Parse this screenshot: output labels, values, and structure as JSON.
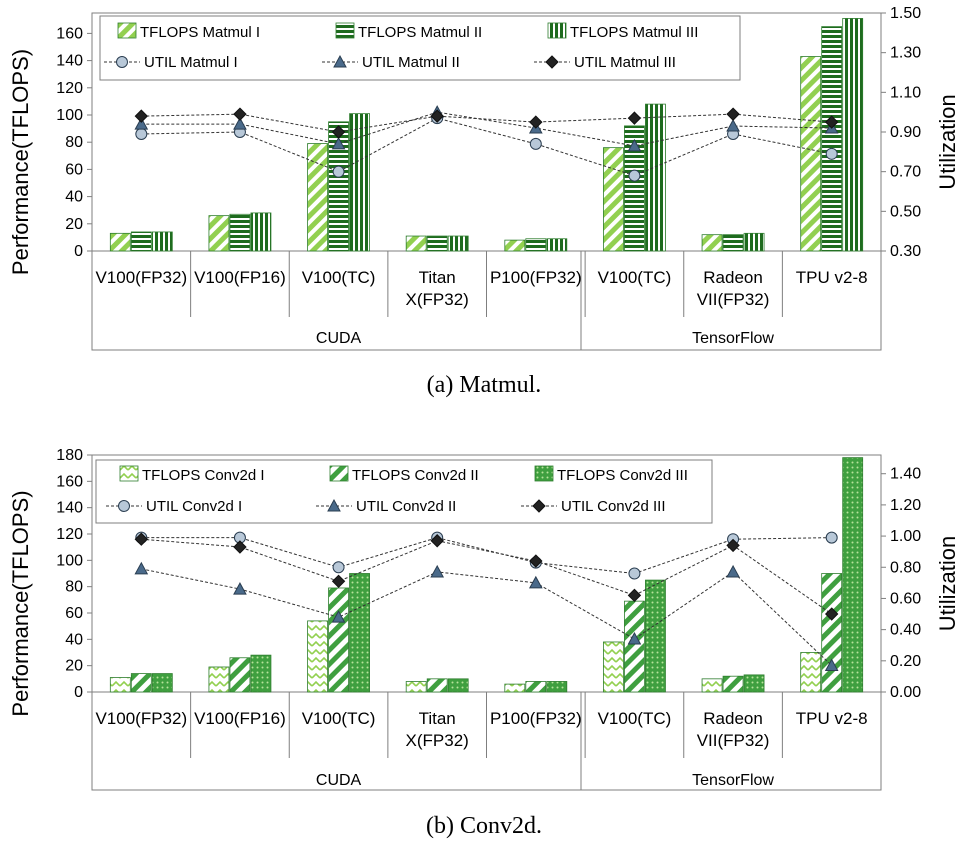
{
  "colors": {
    "light_green": "#92d050",
    "dark_green": "#1e6b1e",
    "mid_green": "#3f9f3f",
    "marker_fill": "#b8c8d8",
    "marker_edge": "#2a3d50",
    "triangle": "#4a6a8a",
    "diamond": "#222222"
  },
  "chart_data": [
    {
      "type": "bar",
      "caption": "(a)  Matmul.",
      "ylabel": "Performance(TFLOPS)",
      "y2label": "Utilization",
      "ylim": [
        0,
        175
      ],
      "y2lim": [
        0.3,
        1.5
      ],
      "yticks": [
        "0",
        "20",
        "40",
        "60",
        "80",
        "100",
        "120",
        "140",
        "160"
      ],
      "y2ticks": [
        "0.30",
        "0.50",
        "0.70",
        "0.90",
        "1.10",
        "1.30",
        "1.50"
      ],
      "categories": [
        {
          "lines": [
            "V100(FP32)"
          ]
        },
        {
          "lines": [
            "V100(FP16)"
          ]
        },
        {
          "lines": [
            "V100(TC)"
          ]
        },
        {
          "lines": [
            "Titan",
            "X(FP32)"
          ]
        },
        {
          "lines": [
            "P100(FP32)"
          ]
        },
        {
          "lines": [
            "V100(TC)"
          ]
        },
        {
          "lines": [
            "Radeon",
            "VII(FP32)"
          ]
        },
        {
          "lines": [
            "TPU v2-8"
          ]
        }
      ],
      "groups": [
        {
          "name": "CUDA",
          "span": [
            0,
            4
          ]
        },
        {
          "name": "TensorFlow",
          "span": [
            5,
            7
          ]
        }
      ],
      "bar_series": [
        {
          "name": "TFLOPS Matmul I",
          "pattern": "m1",
          "values": [
            13,
            26,
            79,
            11,
            8,
            76,
            12,
            143
          ]
        },
        {
          "name": "TFLOPS Matmul II",
          "pattern": "m2",
          "values": [
            14,
            27,
            95,
            11,
            9,
            92,
            12,
            165
          ]
        },
        {
          "name": "TFLOPS Matmul III",
          "pattern": "m3",
          "values": [
            14,
            28,
            101,
            11,
            9,
            108,
            13,
            171
          ]
        }
      ],
      "line_series": [
        {
          "name": "UTIL Matmul I",
          "marker": "circle",
          "values": [
            0.89,
            0.9,
            0.7,
            0.97,
            0.84,
            0.68,
            0.89,
            0.79
          ]
        },
        {
          "name": "UTIL Matmul II",
          "marker": "triangle",
          "values": [
            0.94,
            0.94,
            0.84,
            1.0,
            0.92,
            0.83,
            0.93,
            0.92
          ]
        },
        {
          "name": "UTIL Matmul III",
          "marker": "diamond",
          "values": [
            0.98,
            0.99,
            0.9,
            0.98,
            0.95,
            0.97,
            0.99,
            0.95
          ]
        }
      ]
    },
    {
      "type": "bar",
      "caption": "(b)  Conv2d.",
      "ylabel": "Performance(TFLOPS)",
      "y2label": "Utilization",
      "ylim": [
        0,
        180
      ],
      "y2lim": [
        0.0,
        1.52
      ],
      "yticks": [
        "0",
        "20",
        "40",
        "60",
        "80",
        "100",
        "120",
        "140",
        "160",
        "180"
      ],
      "y2ticks": [
        "0.00",
        "0.20",
        "0.40",
        "0.60",
        "0.80",
        "1.00",
        "1.20",
        "1.40"
      ],
      "categories": [
        {
          "lines": [
            "V100(FP32)"
          ]
        },
        {
          "lines": [
            "V100(FP16)"
          ]
        },
        {
          "lines": [
            "V100(TC)"
          ]
        },
        {
          "lines": [
            "Titan",
            "X(FP32)"
          ]
        },
        {
          "lines": [
            "P100(FP32)"
          ]
        },
        {
          "lines": [
            "V100(TC)"
          ]
        },
        {
          "lines": [
            "Radeon",
            "VII(FP32)"
          ]
        },
        {
          "lines": [
            "TPU v2-8"
          ]
        }
      ],
      "groups": [
        {
          "name": "CUDA",
          "span": [
            0,
            4
          ]
        },
        {
          "name": "TensorFlow",
          "span": [
            5,
            7
          ]
        }
      ],
      "bar_series": [
        {
          "name": "TFLOPS Conv2d I",
          "pattern": "c1",
          "values": [
            11,
            19,
            54,
            8,
            6,
            38,
            10,
            30
          ]
        },
        {
          "name": "TFLOPS Conv2d II",
          "pattern": "c2",
          "values": [
            14,
            26,
            79,
            10,
            8,
            69,
            12,
            90
          ]
        },
        {
          "name": "TFLOPS Conv2d III",
          "pattern": "c3",
          "values": [
            14,
            28,
            90,
            10,
            8,
            85,
            13,
            178
          ]
        }
      ],
      "line_series": [
        {
          "name": "UTIL Conv2d I",
          "marker": "circle",
          "values": [
            0.99,
            0.99,
            0.8,
            0.99,
            0.83,
            0.76,
            0.98,
            0.99
          ]
        },
        {
          "name": "UTIL Conv2d II",
          "marker": "triangle",
          "values": [
            0.79,
            0.66,
            0.48,
            0.77,
            0.7,
            0.34,
            0.77,
            0.17
          ]
        },
        {
          "name": "UTIL Conv2d III",
          "marker": "diamond",
          "values": [
            0.98,
            0.93,
            0.71,
            0.97,
            0.84,
            0.62,
            0.94,
            0.5
          ]
        }
      ]
    }
  ]
}
